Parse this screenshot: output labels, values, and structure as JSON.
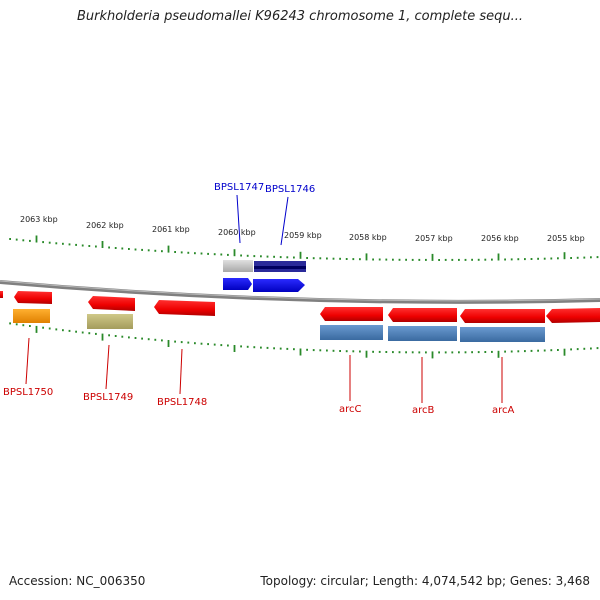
{
  "title": "Burkholderia pseudomallei K96243 chromosome 1, complete sequ...",
  "footer": {
    "accession": "Accession: NC_006350",
    "summary": "Topology: circular; Length: 4,074,542 bp; Genes: 3,468"
  },
  "colors": {
    "backbone": "#8a8a8a",
    "tick": "#2a8a2a",
    "label_red": "#cc0000",
    "label_blue": "#0000cc",
    "gene_red": "#ff1010",
    "gene_blue": "#1010ee",
    "gene_steel": "#4a7fb5",
    "gene_orange": "#ff9800",
    "gene_khaki": "#b8b070",
    "gene_grey": "#c8c8c8",
    "gene_navy": "#101080"
  },
  "ruler": {
    "labels": [
      "2063 kbp",
      "2062 kbp",
      "2061 kbp",
      "2060 kbp",
      "2059 kbp",
      "2058 kbp",
      "2057 kbp",
      "2056 kbp",
      "2055 kbp"
    ]
  },
  "genes": {
    "top_labels": [
      "BPSL1747",
      "BPSL1746"
    ],
    "bottom_labels": [
      "BPSL1750",
      "BPSL1749",
      "BPSL1748",
      "arcC",
      "arcB",
      "arcA"
    ]
  }
}
